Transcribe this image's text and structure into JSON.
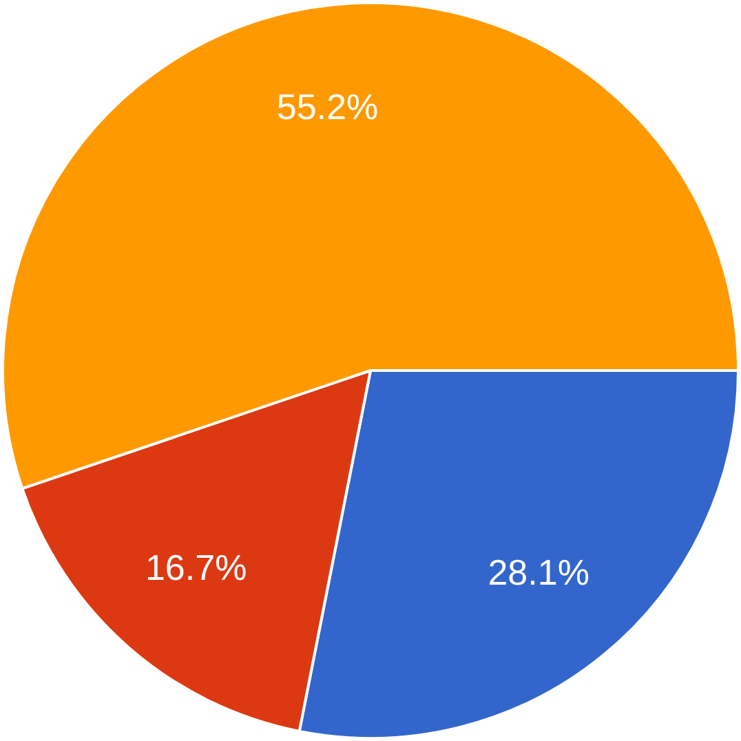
{
  "chart_data": {
    "type": "pie",
    "categories": [
      null,
      null,
      null
    ],
    "values": [
      28.1,
      16.7,
      55.2
    ],
    "colors": [
      "#3366cc",
      "#dc3912",
      "#ff9900"
    ],
    "value_labels": [
      "28.1%",
      "16.7%",
      "55.2%"
    ]
  }
}
